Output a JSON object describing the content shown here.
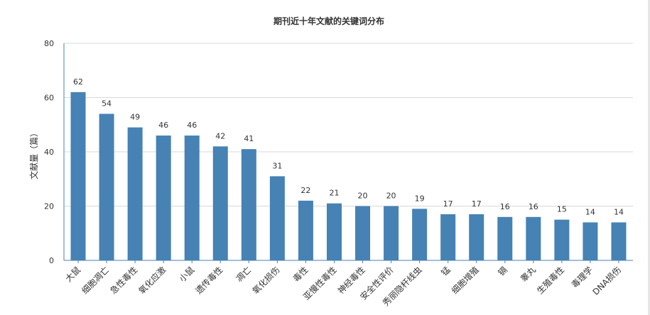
{
  "chart_data": {
    "type": "bar",
    "title": "期刊近十年文献的关键词分布",
    "xlabel": "",
    "ylabel": "文献量（篇）",
    "ylim": [
      0,
      80
    ],
    "yticks": [
      0,
      20,
      40,
      60,
      80
    ],
    "grid": true,
    "legend": "none",
    "categories": [
      "大鼠",
      "细胞凋亡",
      "急性毒性",
      "氧化应激",
      "小鼠",
      "遗传毒性",
      "凋亡",
      "氧化损伤",
      "毒性",
      "亚慢性毒性",
      "神经毒性",
      "安全性评价",
      "秀丽隐杆线虫",
      "锰",
      "细胞增殖",
      "镉",
      "睾丸",
      "生殖毒性",
      "毒理学",
      "DNA损伤"
    ],
    "values": [
      62,
      54,
      49,
      46,
      46,
      42,
      41,
      31,
      22,
      21,
      20,
      20,
      19,
      17,
      17,
      16,
      16,
      15,
      14,
      14
    ],
    "bar_color": "#4682b4",
    "axis_color": "#4682b4",
    "grid_color": "#d9d9d9"
  }
}
